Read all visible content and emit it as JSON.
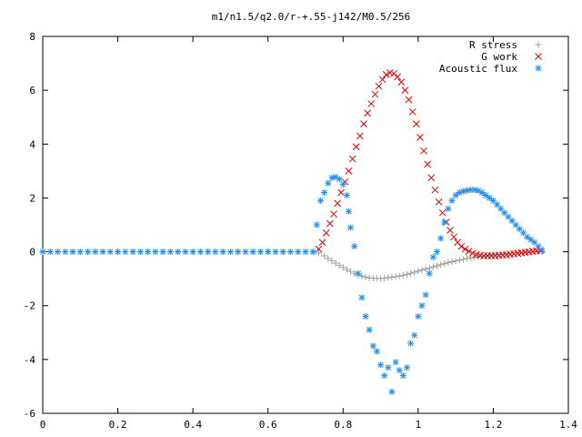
{
  "chart_data": {
    "type": "scatter",
    "title": "m1/n1.5/q2.0/r-+.55-j142/M0.5/256",
    "xlabel": "",
    "ylabel": "",
    "xlim": [
      0,
      1.4
    ],
    "ylim": [
      -6,
      8
    ],
    "xticks": [
      "0",
      "0.2",
      "0.4",
      "0.6",
      "0.8",
      "1",
      "1.2",
      "1.4"
    ],
    "xtick_values": [
      0,
      0.2,
      0.4,
      0.6,
      0.8,
      1.0,
      1.2,
      1.4
    ],
    "yticks": [
      "-6",
      "-4",
      "-2",
      "0",
      "2",
      "4",
      "6",
      "8"
    ],
    "ytick_values": [
      -6,
      -4,
      -2,
      0,
      2,
      4,
      6,
      8
    ],
    "grid": false,
    "legend_position": "top-right",
    "series": [
      {
        "name": "R stress",
        "marker": "+",
        "color": "#a0a0a0",
        "x": [
          0.0,
          0.04,
          0.08,
          0.12,
          0.16,
          0.2,
          0.24,
          0.28,
          0.32,
          0.36,
          0.4,
          0.44,
          0.48,
          0.52,
          0.56,
          0.6,
          0.64,
          0.68,
          0.72,
          0.735,
          0.75,
          0.76,
          0.77,
          0.78,
          0.79,
          0.8,
          0.81,
          0.82,
          0.83,
          0.84,
          0.85,
          0.86,
          0.87,
          0.88,
          0.89,
          0.9,
          0.91,
          0.92,
          0.93,
          0.94,
          0.95,
          0.96,
          0.97,
          0.98,
          0.99,
          1.0,
          1.01,
          1.02,
          1.03,
          1.04,
          1.05,
          1.06,
          1.07,
          1.08,
          1.09,
          1.1,
          1.11,
          1.12,
          1.13,
          1.14,
          1.15,
          1.16,
          1.17,
          1.18,
          1.19,
          1.2,
          1.21,
          1.22,
          1.23,
          1.24,
          1.25,
          1.26,
          1.27,
          1.28,
          1.29,
          1.3,
          1.31,
          1.32,
          1.33
        ],
        "y": [
          0,
          0,
          0,
          0,
          0,
          0,
          0,
          0,
          0,
          0,
          0,
          0,
          0,
          0,
          0,
          0,
          0,
          0,
          0,
          -0.05,
          -0.15,
          -0.25,
          -0.33,
          -0.42,
          -0.5,
          -0.58,
          -0.66,
          -0.73,
          -0.8,
          -0.86,
          -0.9,
          -0.94,
          -0.97,
          -0.98,
          -0.99,
          -0.99,
          -0.98,
          -0.96,
          -0.94,
          -0.92,
          -0.9,
          -0.87,
          -0.84,
          -0.8,
          -0.76,
          -0.72,
          -0.68,
          -0.64,
          -0.6,
          -0.56,
          -0.52,
          -0.48,
          -0.44,
          -0.4,
          -0.37,
          -0.34,
          -0.31,
          -0.28,
          -0.25,
          -0.22,
          -0.2,
          -0.18,
          -0.16,
          -0.14,
          -0.12,
          -0.1,
          -0.09,
          -0.08,
          -0.07,
          -0.06,
          -0.05,
          -0.04,
          -0.03,
          -0.02,
          -0.01,
          -0.01,
          0,
          0,
          0
        ]
      },
      {
        "name": "G work",
        "marker": "x",
        "color": "#e00000",
        "x": [
          0.735,
          0.745,
          0.755,
          0.765,
          0.775,
          0.785,
          0.795,
          0.805,
          0.815,
          0.825,
          0.835,
          0.845,
          0.855,
          0.865,
          0.875,
          0.885,
          0.895,
          0.905,
          0.915,
          0.925,
          0.935,
          0.945,
          0.955,
          0.965,
          0.975,
          0.985,
          0.995,
          1.005,
          1.015,
          1.025,
          1.035,
          1.045,
          1.055,
          1.065,
          1.075,
          1.085,
          1.095,
          1.105,
          1.115,
          1.125,
          1.135,
          1.145,
          1.155,
          1.165,
          1.175,
          1.185,
          1.195,
          1.205,
          1.215,
          1.225,
          1.235,
          1.245,
          1.255,
          1.265,
          1.275,
          1.285,
          1.295,
          1.305,
          1.315,
          1.325
        ],
        "y": [
          0.1,
          0.35,
          0.7,
          1.05,
          1.4,
          1.8,
          2.2,
          2.6,
          3.0,
          3.45,
          3.9,
          4.3,
          4.75,
          5.15,
          5.5,
          5.85,
          6.15,
          6.4,
          6.58,
          6.65,
          6.62,
          6.5,
          6.3,
          6.0,
          5.65,
          5.2,
          4.75,
          4.25,
          3.75,
          3.25,
          2.75,
          2.3,
          1.85,
          1.45,
          1.1,
          0.8,
          0.55,
          0.35,
          0.2,
          0.1,
          0.02,
          -0.05,
          -0.1,
          -0.13,
          -0.15,
          -0.15,
          -0.15,
          -0.15,
          -0.14,
          -0.13,
          -0.12,
          -0.1,
          -0.08,
          -0.06,
          -0.04,
          -0.02,
          0.0,
          0.02,
          0.04,
          0.05
        ]
      },
      {
        "name": "Acoustic flux",
        "marker": "*",
        "color": "#1e8ef0",
        "x": [
          0.0,
          0.02,
          0.04,
          0.06,
          0.08,
          0.1,
          0.12,
          0.14,
          0.16,
          0.18,
          0.2,
          0.22,
          0.24,
          0.26,
          0.28,
          0.3,
          0.32,
          0.34,
          0.36,
          0.38,
          0.4,
          0.42,
          0.44,
          0.46,
          0.48,
          0.5,
          0.52,
          0.54,
          0.56,
          0.58,
          0.6,
          0.62,
          0.64,
          0.66,
          0.68,
          0.7,
          0.72,
          0.73,
          0.74,
          0.75,
          0.76,
          0.77,
          0.78,
          0.79,
          0.8,
          0.81,
          0.815,
          0.82,
          0.83,
          0.84,
          0.85,
          0.86,
          0.87,
          0.88,
          0.89,
          0.9,
          0.91,
          0.92,
          0.93,
          0.94,
          0.95,
          0.96,
          0.97,
          0.98,
          0.99,
          1.0,
          1.01,
          1.02,
          1.03,
          1.04,
          1.05,
          1.06,
          1.07,
          1.08,
          1.09,
          1.1,
          1.11,
          1.12,
          1.13,
          1.14,
          1.15,
          1.16,
          1.17,
          1.18,
          1.19,
          1.2,
          1.21,
          1.22,
          1.23,
          1.24,
          1.25,
          1.26,
          1.27,
          1.28,
          1.29,
          1.3,
          1.31,
          1.32,
          1.33
        ],
        "y": [
          0,
          0,
          0,
          0,
          0,
          0,
          0,
          0,
          0,
          0,
          0,
          0,
          0,
          0,
          0,
          0,
          0,
          0,
          0,
          0,
          0,
          0,
          0,
          0,
          0,
          0,
          0,
          0,
          0,
          0,
          0,
          0,
          0,
          0,
          0,
          0,
          0,
          1.0,
          1.9,
          2.2,
          2.55,
          2.75,
          2.78,
          2.7,
          2.5,
          2.1,
          1.5,
          0.9,
          0.2,
          -0.8,
          -1.7,
          -2.4,
          -2.9,
          -3.5,
          -3.7,
          -4.2,
          -4.6,
          -4.3,
          -5.2,
          -4.1,
          -4.4,
          -4.6,
          -4.3,
          -3.4,
          -3.1,
          -2.4,
          -2.0,
          -1.6,
          -0.8,
          -0.2,
          0.0,
          0.5,
          1.1,
          1.6,
          1.9,
          2.1,
          2.2,
          2.25,
          2.28,
          2.3,
          2.3,
          2.27,
          2.2,
          2.1,
          2.0,
          1.9,
          1.75,
          1.6,
          1.45,
          1.3,
          1.15,
          1.0,
          0.85,
          0.7,
          0.55,
          0.45,
          0.35,
          0.2,
          0.05
        ]
      }
    ]
  }
}
